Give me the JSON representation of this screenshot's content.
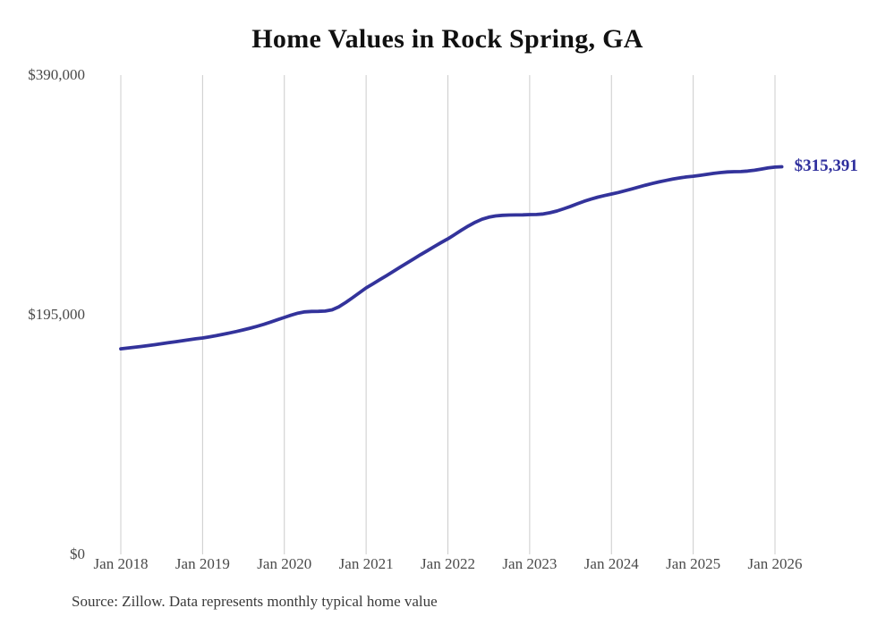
{
  "chart": {
    "title": "Home Values in Rock Spring, GA",
    "source": "Source: Zillow. Data represents monthly typical home value",
    "end_label": "$315,391"
  },
  "chart_data": {
    "type": "line",
    "title": "Home Values in Rock Spring, GA",
    "series_name": "Monthly typical home value",
    "x_start": "2018-01",
    "x_interval": "monthly",
    "x_tick_labels": [
      "Jan 2018",
      "Jan 2019",
      "Jan 2020",
      "Jan 2021",
      "Jan 2022",
      "Jan 2023",
      "Jan 2024",
      "Jan 2025",
      "Jan 2026"
    ],
    "y_ticks": [
      0,
      195000,
      390000
    ],
    "y_tick_labels": [
      "$0",
      "$195,000",
      "$390,000"
    ],
    "ylim": [
      0,
      390000
    ],
    "grid": "vertical-only",
    "legend": "none",
    "line_color": "#33339b",
    "gridline_color": "#cccccc",
    "annotation": {
      "text": "$315,391",
      "value": 315391
    },
    "values": [
      167300,
      167900,
      168500,
      169200,
      169900,
      170600,
      171400,
      172200,
      173000,
      173800,
      174600,
      175400,
      176100,
      177000,
      178000,
      179100,
      180200,
      181400,
      182700,
      184100,
      185600,
      187200,
      189000,
      190900,
      192800,
      194700,
      196300,
      197300,
      197700,
      197800,
      198000,
      199000,
      201500,
      205000,
      208800,
      212800,
      216800,
      220100,
      223500,
      226900,
      230300,
      233700,
      237100,
      240500,
      243900,
      247200,
      250500,
      253700,
      256800,
      260300,
      263800,
      267200,
      270200,
      272700,
      274400,
      275400,
      275900,
      276100,
      276200,
      276300,
      276500,
      276600,
      277000,
      278000,
      279400,
      281200,
      283200,
      285300,
      287300,
      289100,
      290700,
      292000,
      293200,
      294500,
      295900,
      297400,
      298900,
      300400,
      301800,
      303100,
      304300,
      305400,
      306300,
      307100,
      307700,
      308400,
      309200,
      310000,
      310700,
      311200,
      311400,
      311500,
      311900,
      312600,
      313500,
      314500,
      315100,
      315391
    ]
  }
}
